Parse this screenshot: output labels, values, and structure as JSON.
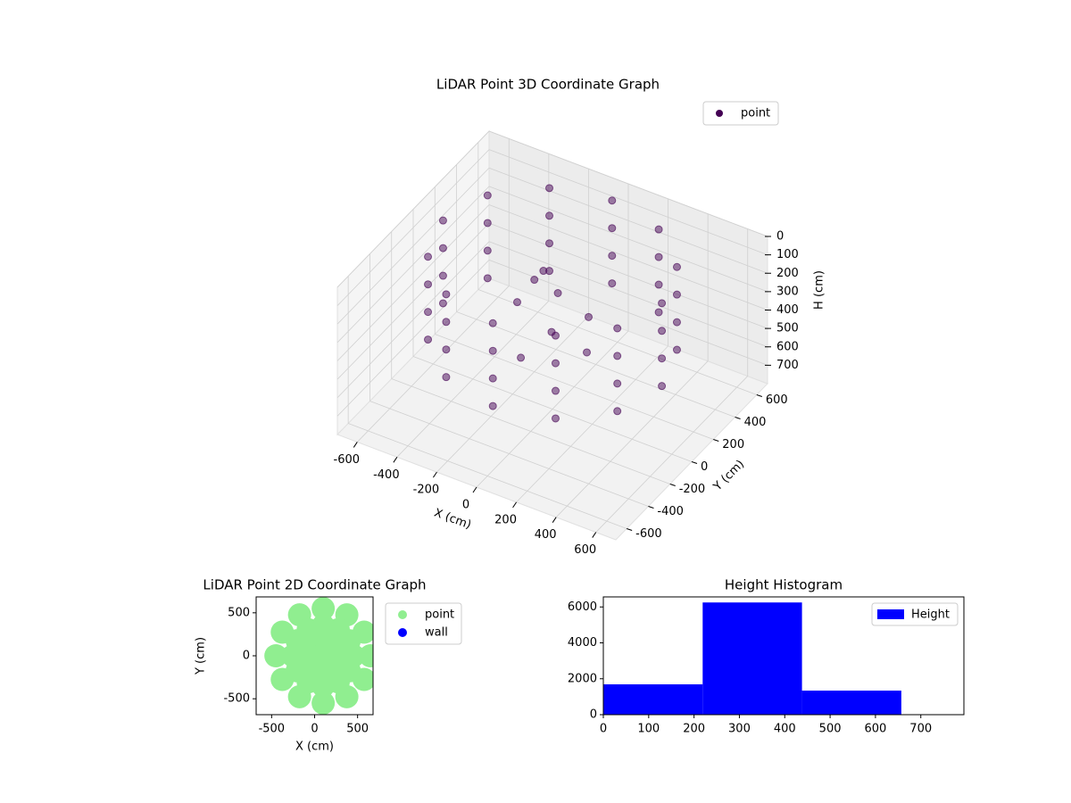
{
  "chart_data": [
    {
      "type": "scatter3d",
      "title": "LiDAR Point 3D Coordinate Graph",
      "xlabel": "X (cm)",
      "ylabel": "Y (cm)",
      "zlabel": "H (cm)",
      "xlim": [
        -700,
        700
      ],
      "ylim": [
        -700,
        700
      ],
      "zlim": [
        800,
        0
      ],
      "xticks": [
        -600,
        -400,
        -200,
        0,
        200,
        400,
        600
      ],
      "yticks": [
        -600,
        -400,
        -200,
        0,
        200,
        400,
        600
      ],
      "zticks": [
        0,
        100,
        200,
        300,
        400,
        500,
        600,
        700
      ],
      "legend": "upper right",
      "grid": true,
      "series": [
        {
          "name": "point",
          "color": "#440154",
          "x": [
            550,
            476,
            275,
            0,
            -275,
            -476,
            -550,
            -476,
            -275,
            0,
            275,
            476,
            550,
            476,
            275,
            0,
            -275,
            -476,
            -550,
            -476,
            -275,
            0,
            275,
            476,
            550,
            476,
            275,
            0,
            -275,
            -476,
            -550,
            -476,
            -275,
            0,
            275,
            476,
            550,
            476,
            275,
            0,
            -275,
            -476,
            -550,
            -476,
            -275,
            0,
            275,
            476,
            -100,
            0,
            50,
            -150,
            100,
            -50,
            200,
            -200
          ],
          "y": [
            0,
            275,
            476,
            550,
            476,
            275,
            0,
            -275,
            -476,
            -550,
            -476,
            -275,
            0,
            275,
            476,
            550,
            476,
            275,
            0,
            -275,
            -476,
            -550,
            -476,
            -275,
            0,
            275,
            476,
            550,
            476,
            275,
            0,
            -275,
            -476,
            -550,
            -476,
            -275,
            0,
            275,
            476,
            550,
            476,
            275,
            0,
            -275,
            -476,
            -550,
            -476,
            -275,
            100,
            50,
            -100,
            -50,
            150,
            -200,
            -50,
            200
          ],
          "h": [
            0,
            0,
            0,
            0,
            0,
            0,
            0,
            0,
            0,
            0,
            0,
            0,
            150,
            150,
            150,
            150,
            150,
            150,
            150,
            150,
            150,
            150,
            150,
            150,
            300,
            300,
            300,
            300,
            300,
            300,
            300,
            300,
            300,
            300,
            300,
            300,
            450,
            450,
            450,
            450,
            450,
            450,
            450,
            450,
            450,
            450,
            450,
            450,
            150,
            200,
            300,
            250,
            350,
            420,
            380,
            300
          ]
        }
      ]
    },
    {
      "type": "scatter",
      "title": "LiDAR Point 2D Coordinate Graph",
      "xlabel": "X (cm)",
      "ylabel": "Y (cm)",
      "xlim": [
        -680,
        680
      ],
      "ylim": [
        -685,
        685
      ],
      "xticks": [
        -500,
        0,
        500
      ],
      "yticks": [
        -500,
        0,
        500
      ],
      "legend": "outside right",
      "series": [
        {
          "name": "point",
          "color": "#90ee90",
          "x": [
            650,
            576,
            375,
            100,
            -175,
            -376,
            -450,
            -376,
            -175,
            100,
            375,
            576,
            450,
            403,
            275,
            100,
            -75,
            -203,
            -250,
            -203,
            -75,
            100,
            275,
            403,
            250,
            175,
            25,
            -50,
            25,
            175,
            100
          ],
          "y": [
            0,
            275,
            476,
            550,
            476,
            275,
            0,
            -275,
            -476,
            -550,
            -476,
            -275,
            0,
            175,
            303,
            350,
            303,
            175,
            0,
            -175,
            -303,
            -350,
            -303,
            -175,
            0,
            130,
            130,
            0,
            -130,
            -130,
            0
          ]
        },
        {
          "name": "wall",
          "color": "#0000ff",
          "x": [],
          "y": []
        }
      ]
    },
    {
      "type": "histogram",
      "title": "Height Histogram",
      "bins": [
        0,
        219,
        438,
        657
      ],
      "values": [
        1690,
        6250,
        1340
      ],
      "series_name": "Height",
      "color": "#0000ff",
      "xlim": [
        0,
        795
      ],
      "ylim": [
        0,
        6560
      ],
      "xticks": [
        0,
        100,
        200,
        300,
        400,
        500,
        600,
        700
      ],
      "yticks": [
        0,
        2000,
        4000,
        6000
      ],
      "legend": "upper right"
    }
  ]
}
